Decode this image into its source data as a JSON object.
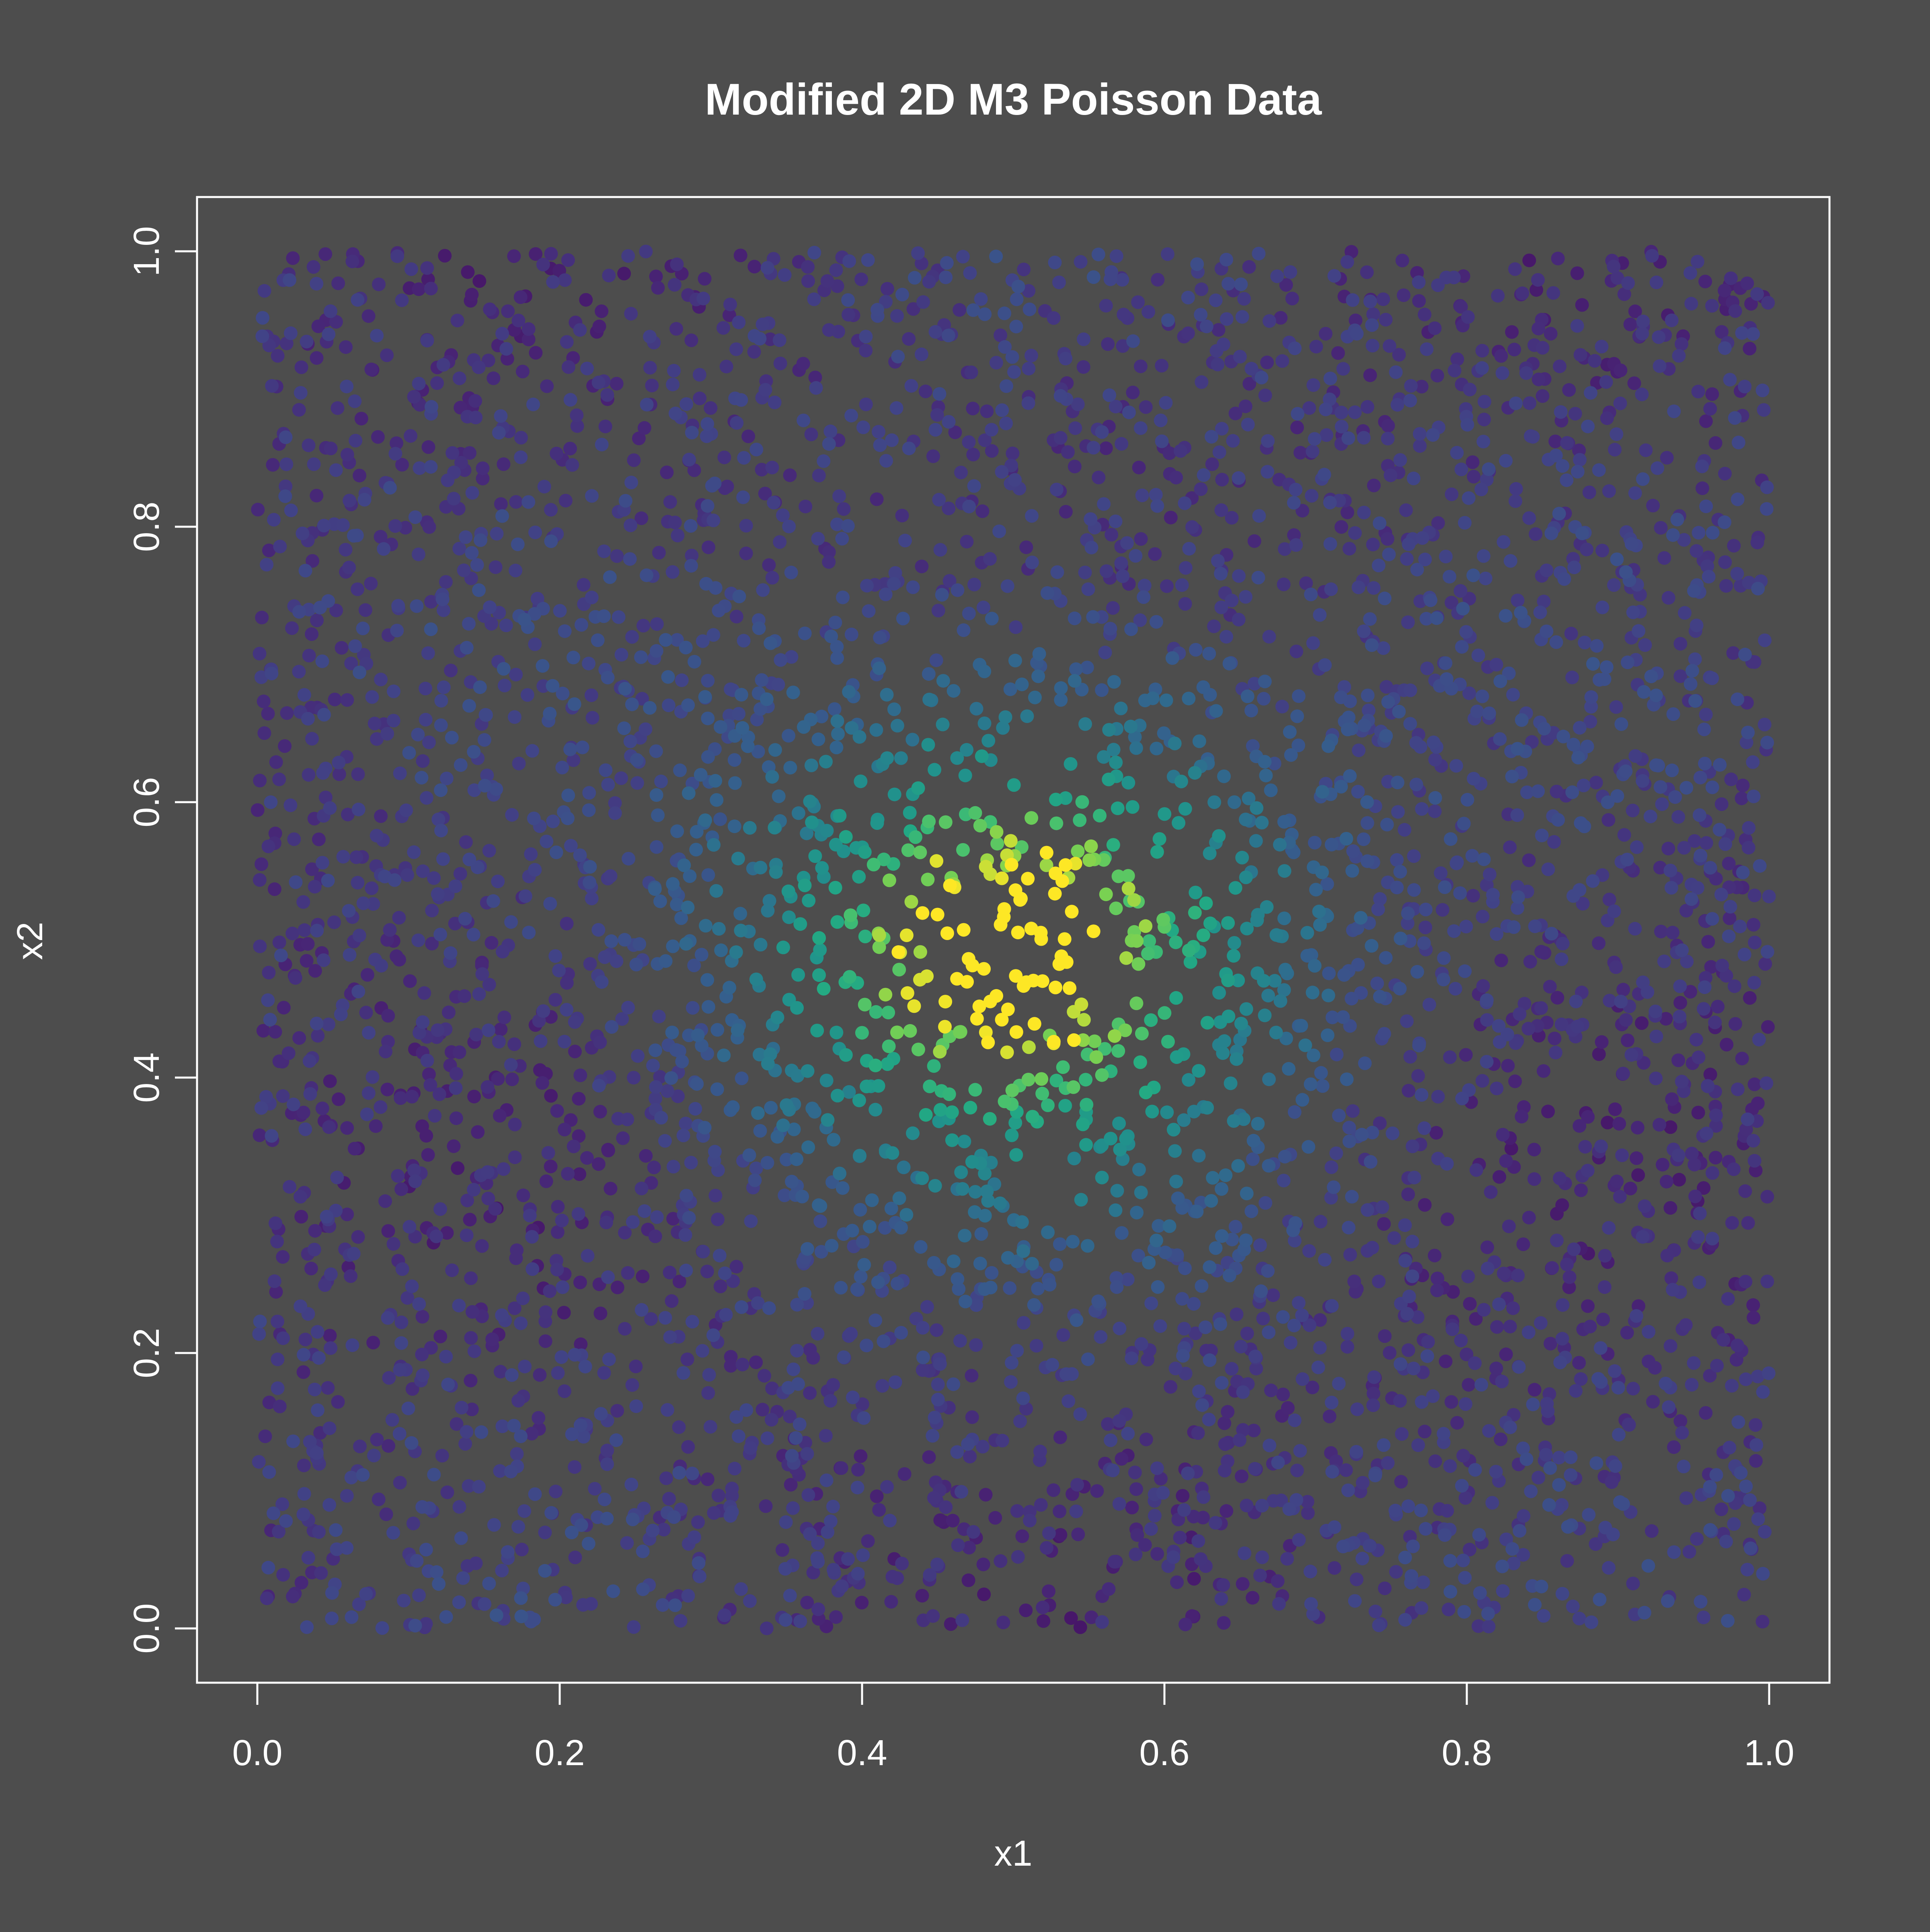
{
  "colors": {
    "background": "#4d4d4d",
    "foreground": "#ffffff",
    "palette": "viridis"
  },
  "chart_data": {
    "type": "scatter",
    "title": "Modified 2D M3 Poisson Data",
    "xlabel": "x1",
    "ylabel": "x2",
    "xlim": [
      -0.04,
      1.04
    ],
    "ylim": [
      -0.04,
      1.04
    ],
    "xticks": [
      0.0,
      0.2,
      0.4,
      0.6,
      0.8,
      1.0
    ],
    "yticks": [
      0.0,
      0.2,
      0.4,
      0.6,
      0.8,
      1.0
    ],
    "xtick_labels": [
      "0.0",
      "0.2",
      "0.4",
      "0.6",
      "0.8",
      "1.0"
    ],
    "ytick_labels": [
      "0.0",
      "0.2",
      "0.4",
      "0.6",
      "0.8",
      "1.0"
    ],
    "grid": false,
    "legend": "none",
    "point_color_scale": "viridis (dark purple = low intensity, yellow = high intensity)",
    "peak_center": [
      0.5,
      0.5
    ],
    "peak_radius": 0.2,
    "approx_point_count": 4500,
    "x_range": [
      0.0,
      1.0
    ],
    "y_range": [
      0.0,
      1.0
    ],
    "points_note": "Points are distributed approximately uniformly over [0,1]x[0,1]; colour intensity rises towards the centre (0.5, 0.5), where the response is highest (bright green/yellow)."
  }
}
